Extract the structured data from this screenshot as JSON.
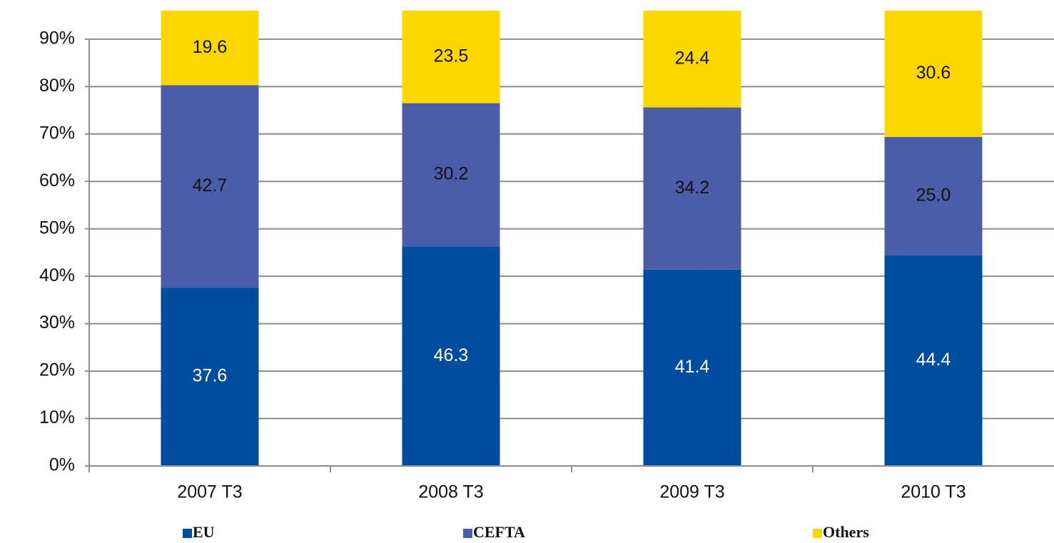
{
  "chart_data": {
    "type": "stacked_bar",
    "categories": [
      "2007 T3",
      "2008 T3",
      "2009 T3",
      "2010 T3"
    ],
    "series": [
      {
        "name": "EU",
        "color": "#004c9f",
        "values": [
          37.6,
          46.3,
          41.4,
          44.4
        ],
        "value_labels": [
          "37.6",
          "46.3",
          "41.4",
          "44.4"
        ]
      },
      {
        "name": "CEFTA",
        "color": "#4b5da8",
        "values": [
          42.7,
          30.2,
          34.2,
          25.0
        ],
        "value_labels": [
          "42.7",
          "30.2",
          "34.2",
          "25.0"
        ]
      },
      {
        "name": "Others",
        "color": "#ffd700",
        "values": [
          19.6,
          23.5,
          24.4,
          30.6
        ],
        "value_labels": [
          "19.6",
          "23.5",
          "24.4",
          "30.6"
        ]
      }
    ],
    "ylim": [
      0,
      96
    ],
    "yticks": [
      {
        "value": 0,
        "label": "0%"
      },
      {
        "value": 10,
        "label": "10%"
      },
      {
        "value": 20,
        "label": "20%"
      },
      {
        "value": 30,
        "label": "30%"
      },
      {
        "value": 40,
        "label": "40%"
      },
      {
        "value": 50,
        "label": "50%"
      },
      {
        "value": 60,
        "label": "60%"
      },
      {
        "value": 70,
        "label": "70%"
      },
      {
        "value": 80,
        "label": "80%"
      },
      {
        "value": 90,
        "label": "90%"
      }
    ],
    "grid": true
  }
}
